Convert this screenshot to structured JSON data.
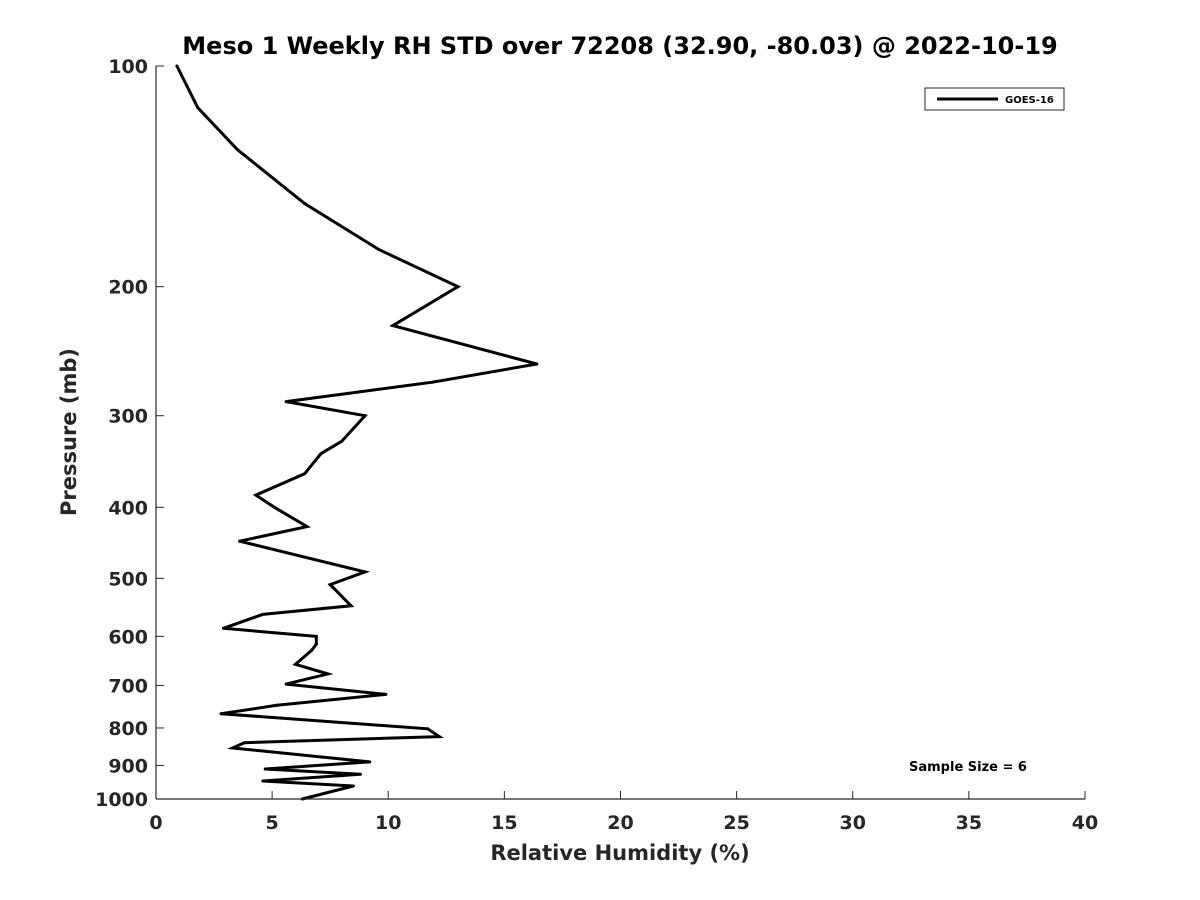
{
  "chart_data": {
    "type": "line",
    "title": "Meso 1 Weekly RH STD over 72208 (32.90, -80.03) @ 2022-10-19",
    "xlabel": "Relative Humidity (%)",
    "ylabel": "Pressure (mb)",
    "xlim": [
      0,
      40
    ],
    "ylim": [
      100,
      1000
    ],
    "yscale": "log",
    "y_reversed": true,
    "x_ticks": [
      0,
      5,
      10,
      15,
      20,
      25,
      30,
      35,
      40
    ],
    "y_ticks": [
      100,
      200,
      300,
      400,
      500,
      600,
      700,
      800,
      900,
      1000
    ],
    "grid": false,
    "legend": {
      "position": "top-right",
      "entries": [
        "GOES-16"
      ]
    },
    "annotation": "Sample Size = 6",
    "series": [
      {
        "name": "GOES-16",
        "color": "#000000",
        "x": [
          0.9,
          1.8,
          3.5,
          6.4,
          9.6,
          13.0,
          10.2,
          16.4,
          11.9,
          5.6,
          9.0,
          8.0,
          7.1,
          6.4,
          4.3,
          5.1,
          6.5,
          3.6,
          9.0,
          7.5,
          8.4,
          4.6,
          2.9,
          6.9,
          6.9,
          6.7,
          6.0,
          7.4,
          5.6,
          9.9,
          5.2,
          2.8,
          11.7,
          12.2,
          3.8,
          3.3,
          9.2,
          4.7,
          8.8,
          4.6,
          8.5,
          6.3
        ],
        "y": [
          100,
          114,
          130,
          154,
          178,
          200,
          226,
          255,
          270,
          287,
          300,
          325,
          338,
          360,
          385,
          400,
          425,
          445,
          490,
          510,
          545,
          560,
          585,
          600,
          615,
          627,
          655,
          675,
          697,
          720,
          745,
          765,
          802,
          822,
          838,
          852,
          890,
          910,
          925,
          945,
          960,
          1000
        ]
      }
    ]
  }
}
